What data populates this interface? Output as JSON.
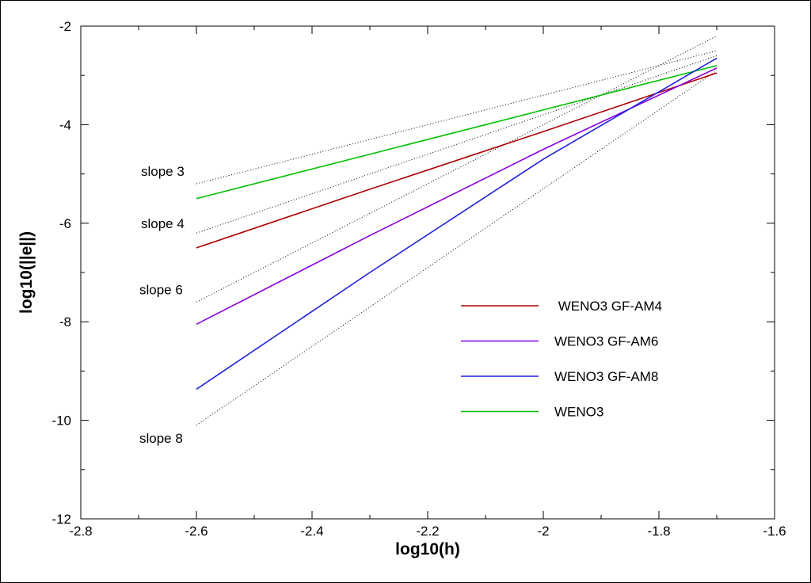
{
  "chart_data": {
    "type": "line",
    "title": "",
    "xlabel": "log10(h)",
    "ylabel": "log10(||e||)",
    "xlim": [
      -2.8,
      -1.6
    ],
    "ylim": [
      -12,
      -2
    ],
    "xticks": [
      -2.8,
      -2.6,
      -2.4,
      -2.2,
      -2,
      -1.8,
      -1.6
    ],
    "xtick_labels": [
      "-2.8",
      "-2.6",
      "-2.4",
      "-2.2",
      "-2",
      "-1.8",
      "-1.6"
    ],
    "yticks": [
      -12,
      -10,
      -8,
      -6,
      -4,
      -2
    ],
    "ytick_labels": [
      "-12",
      "-10",
      "-8",
      "-6",
      "-4",
      "-2"
    ],
    "grid": false,
    "legend_position": "right",
    "series": [
      {
        "name": " WENO3 GF-AM4",
        "color": "#b00000",
        "x": [
          -2.6,
          -2.3,
          -2.0,
          -1.7
        ],
        "y": [
          -6.5,
          -5.31,
          -4.14,
          -2.95
        ]
      },
      {
        "name": "WENO3 GF-AM6",
        "color": "#8a00e0",
        "x": [
          -2.6,
          -2.3,
          -2.0,
          -1.7
        ],
        "y": [
          -8.05,
          -6.25,
          -4.5,
          -2.85
        ]
      },
      {
        "name": "WENO3 GF-AM8",
        "color": "#2020e0",
        "x": [
          -2.6,
          -2.3,
          -2.0,
          -1.7
        ],
        "y": [
          -9.37,
          -7.0,
          -4.7,
          -2.65
        ]
      },
      {
        "name": "WENO3",
        "color": "#00c000",
        "x": [
          -2.6,
          -2.3,
          -2.0,
          -1.7
        ],
        "y": [
          -5.5,
          -4.6,
          -3.7,
          -2.8
        ]
      }
    ],
    "reference_lines": [
      {
        "label": "slope 3",
        "slope": 3,
        "x": [
          -2.6,
          -1.7
        ],
        "y": [
          -5.2,
          -2.5
        ]
      },
      {
        "label": "slope 4",
        "slope": 4,
        "x": [
          -2.6,
          -1.7
        ],
        "y": [
          -6.2,
          -2.6
        ]
      },
      {
        "label": "slope 6",
        "slope": 6,
        "x": [
          -2.6,
          -1.7
        ],
        "y": [
          -7.6,
          -2.2
        ]
      },
      {
        "label": "slope 8",
        "slope": 8,
        "x": [
          -2.6,
          -1.7
        ],
        "y": [
          -10.1,
          -2.9
        ]
      }
    ]
  }
}
